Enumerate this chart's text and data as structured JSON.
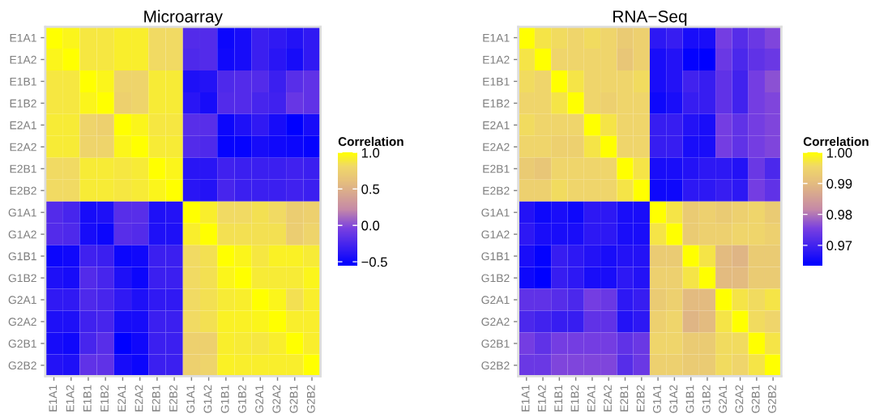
{
  "chart_data": [
    {
      "type": "heatmap",
      "title": "Microarray",
      "clabel": "Correlation",
      "categories": [
        "E1A1",
        "E1A2",
        "E1B1",
        "E1B2",
        "E2A1",
        "E2A2",
        "E2B1",
        "E2B2",
        "G1A1",
        "G1A2",
        "G1B1",
        "G1B2",
        "G2A1",
        "G2A2",
        "G2B1",
        "G2B2"
      ],
      "y_categories": [
        "E1A1",
        "E1A2",
        "E1B1",
        "E1B2",
        "E2A1",
        "E2A2",
        "E2B1",
        "E2B2",
        "G1A1",
        "G1A2",
        "G1B1",
        "G1B2",
        "G2A1",
        "G2A2",
        "G2B1",
        "G2B2"
      ],
      "cells": [
        [
          1,
          0.95,
          0.88,
          0.88,
          0.92,
          0.92,
          0.82,
          0.82,
          -0.2,
          -0.2,
          -0.5,
          -0.45,
          -0.3,
          -0.35,
          -0.4,
          -0.35
        ],
        [
          0.95,
          1,
          0.88,
          0.88,
          0.92,
          0.92,
          0.82,
          0.82,
          -0.22,
          -0.2,
          -0.48,
          -0.45,
          -0.3,
          -0.38,
          -0.45,
          -0.35
        ],
        [
          0.88,
          0.88,
          1,
          0.95,
          0.78,
          0.78,
          0.9,
          0.9,
          -0.42,
          -0.4,
          -0.22,
          -0.2,
          -0.2,
          -0.3,
          -0.18,
          -0.15
        ],
        [
          0.88,
          0.88,
          0.95,
          1,
          0.75,
          0.78,
          0.9,
          0.9,
          -0.38,
          -0.45,
          -0.2,
          -0.2,
          -0.25,
          -0.28,
          -0.12,
          -0.15
        ],
        [
          0.9,
          0.9,
          0.78,
          0.75,
          1,
          0.95,
          0.88,
          0.88,
          -0.18,
          -0.18,
          -0.5,
          -0.42,
          -0.35,
          -0.45,
          -0.55,
          -0.45
        ],
        [
          0.9,
          0.9,
          0.78,
          0.78,
          0.95,
          1,
          0.9,
          0.9,
          -0.2,
          -0.22,
          -0.52,
          -0.52,
          -0.45,
          -0.48,
          -0.5,
          -0.52
        ],
        [
          0.82,
          0.82,
          0.9,
          0.9,
          0.88,
          0.9,
          1,
          0.95,
          -0.38,
          -0.38,
          -0.28,
          -0.3,
          -0.3,
          -0.3,
          -0.28,
          -0.3
        ],
        [
          0.82,
          0.82,
          0.9,
          0.9,
          0.88,
          0.9,
          0.95,
          1,
          -0.38,
          -0.4,
          -0.25,
          -0.3,
          -0.3,
          -0.3,
          -0.28,
          -0.3
        ],
        [
          -0.2,
          -0.25,
          -0.45,
          -0.42,
          -0.18,
          -0.18,
          -0.42,
          -0.4,
          1,
          0.92,
          0.82,
          0.82,
          0.85,
          0.82,
          0.72,
          0.75
        ],
        [
          -0.2,
          -0.22,
          -0.45,
          -0.5,
          -0.18,
          -0.2,
          -0.42,
          -0.42,
          0.92,
          1,
          0.85,
          0.85,
          0.85,
          0.85,
          0.72,
          0.78
        ],
        [
          -0.5,
          -0.48,
          -0.28,
          -0.3,
          -0.5,
          -0.48,
          -0.3,
          -0.3,
          0.82,
          0.85,
          1,
          0.95,
          0.88,
          0.93,
          0.93,
          0.9
        ],
        [
          -0.42,
          -0.45,
          -0.2,
          -0.25,
          -0.42,
          -0.5,
          -0.3,
          -0.3,
          0.82,
          0.85,
          0.95,
          1,
          0.9,
          0.9,
          0.9,
          0.95
        ],
        [
          -0.35,
          -0.35,
          -0.22,
          -0.25,
          -0.35,
          -0.42,
          -0.35,
          -0.35,
          0.82,
          0.85,
          0.9,
          0.92,
          1,
          0.95,
          0.85,
          0.92
        ],
        [
          -0.42,
          -0.42,
          -0.28,
          -0.25,
          -0.45,
          -0.45,
          -0.3,
          -0.3,
          0.82,
          0.85,
          0.93,
          0.93,
          0.95,
          1,
          0.92,
          0.92
        ],
        [
          -0.45,
          -0.48,
          -0.25,
          -0.18,
          -0.55,
          -0.48,
          -0.3,
          -0.3,
          0.75,
          0.75,
          0.92,
          0.9,
          0.88,
          0.92,
          1,
          0.92
        ],
        [
          -0.4,
          -0.42,
          -0.15,
          -0.15,
          -0.45,
          -0.5,
          -0.3,
          -0.3,
          0.75,
          0.78,
          0.93,
          0.92,
          0.92,
          0.92,
          0.92,
          1
        ]
      ],
      "clim": [
        -0.55,
        1.0
      ],
      "cticks": [
        {
          "value": -0.5,
          "label": "−0.5"
        },
        {
          "value": 0,
          "label": "0.0"
        },
        {
          "value": 0.5,
          "label": "0.5"
        },
        {
          "value": 1,
          "label": "1.0"
        }
      ]
    },
    {
      "type": "heatmap",
      "title": "RNA−Seq",
      "clabel": "Correlation",
      "categories": [
        "E1A1",
        "E1A2",
        "E1B1",
        "E1B2",
        "E2A1",
        "E2A2",
        "E2B1",
        "E2B2",
        "G1A1",
        "G1A2",
        "G1B1",
        "G1B2",
        "G2A1",
        "G2A2",
        "G2B1",
        "G2B2"
      ],
      "y_categories": [
        "E1A1",
        "E1A2",
        "E1B1",
        "E1B2",
        "E2A1",
        "E2A2",
        "E2B1",
        "E2B2",
        "G1A1",
        "G1A2",
        "G1B1",
        "G1B2",
        "G2A1",
        "G2A2",
        "G2B1",
        "G2B2"
      ],
      "cells": [
        [
          1,
          0.997,
          0.996,
          0.995,
          0.996,
          0.995,
          0.993,
          0.994,
          0.968,
          0.969,
          0.966,
          0.966,
          0.975,
          0.972,
          0.974,
          0.976
        ],
        [
          0.997,
          1,
          0.995,
          0.995,
          0.995,
          0.995,
          0.992,
          0.994,
          0.966,
          0.967,
          0.964,
          0.9635,
          0.974,
          0.971,
          0.973,
          0.974
        ],
        [
          0.996,
          0.995,
          1,
          0.997,
          0.995,
          0.995,
          0.995,
          0.996,
          0.966,
          0.967,
          0.97,
          0.969,
          0.973,
          0.97,
          0.975,
          0.977
        ],
        [
          0.995,
          0.995,
          0.997,
          1,
          0.995,
          0.994,
          0.995,
          0.995,
          0.965,
          0.966,
          0.969,
          0.969,
          0.973,
          0.97,
          0.975,
          0.976
        ],
        [
          0.996,
          0.995,
          0.995,
          0.995,
          1,
          0.997,
          0.995,
          0.995,
          0.969,
          0.969,
          0.967,
          0.966,
          0.975,
          0.973,
          0.975,
          0.976
        ],
        [
          0.995,
          0.995,
          0.994,
          0.994,
          0.997,
          1,
          0.995,
          0.995,
          0.969,
          0.969,
          0.966,
          0.966,
          0.975,
          0.973,
          0.975,
          0.976
        ],
        [
          0.993,
          0.992,
          0.995,
          0.995,
          0.995,
          0.995,
          1,
          0.997,
          0.966,
          0.966,
          0.967,
          0.968,
          0.968,
          0.967,
          0.974,
          0.971
        ],
        [
          0.994,
          0.994,
          0.996,
          0.995,
          0.995,
          0.995,
          0.997,
          1,
          0.965,
          0.965,
          0.968,
          0.968,
          0.969,
          0.968,
          0.975,
          0.973
        ],
        [
          0.967,
          0.965,
          0.966,
          0.965,
          0.968,
          0.968,
          0.966,
          0.966,
          1,
          0.997,
          0.993,
          0.994,
          0.993,
          0.994,
          0.995,
          0.993
        ],
        [
          0.968,
          0.966,
          0.966,
          0.966,
          0.968,
          0.968,
          0.966,
          0.966,
          0.997,
          1,
          0.993,
          0.994,
          0.994,
          0.995,
          0.995,
          0.994
        ],
        [
          0.966,
          0.964,
          0.969,
          0.968,
          0.967,
          0.966,
          0.967,
          0.967,
          0.993,
          0.993,
          1,
          0.997,
          0.99,
          0.989,
          0.993,
          0.993
        ],
        [
          0.965,
          0.9635,
          0.969,
          0.968,
          0.966,
          0.966,
          0.968,
          0.967,
          0.994,
          0.994,
          0.997,
          1,
          0.99,
          0.99,
          0.993,
          0.993
        ],
        [
          0.973,
          0.973,
          0.972,
          0.971,
          0.975,
          0.974,
          0.968,
          0.969,
          0.993,
          0.994,
          0.99,
          0.99,
          1,
          0.997,
          0.996,
          0.997
        ],
        [
          0.971,
          0.97,
          0.969,
          0.969,
          0.973,
          0.973,
          0.967,
          0.968,
          0.994,
          0.995,
          0.989,
          0.99,
          0.997,
          1,
          0.996,
          0.995
        ],
        [
          0.975,
          0.973,
          0.975,
          0.975,
          0.975,
          0.975,
          0.973,
          0.974,
          0.995,
          0.995,
          0.993,
          0.993,
          0.996,
          0.996,
          1,
          0.997
        ],
        [
          0.974,
          0.974,
          0.976,
          0.976,
          0.976,
          0.976,
          0.972,
          0.974,
          0.994,
          0.994,
          0.993,
          0.993,
          0.996,
          0.995,
          0.997,
          1
        ]
      ],
      "clim": [
        0.9635,
        1.0
      ],
      "cticks": [
        {
          "value": 0.97,
          "label": "0.97"
        },
        {
          "value": 0.98,
          "label": "0.98"
        },
        {
          "value": 0.99,
          "label": "0.99"
        },
        {
          "value": 1,
          "label": "1.00"
        }
      ]
    }
  ]
}
